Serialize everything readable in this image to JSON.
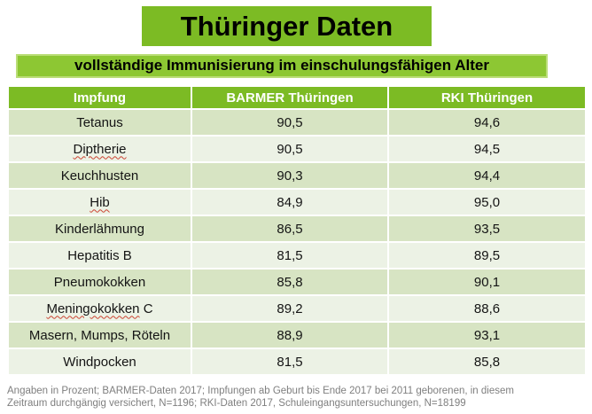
{
  "title": "Thüringer Daten",
  "subtitle": "vollständige Immunisierung im einschulungsfähigen Alter",
  "colors": {
    "brand_green": "#7cbb24",
    "subtitle_fill": "#8dc733",
    "subtitle_border": "#badd77",
    "row_band_dark": "#d7e4c3",
    "row_band_light": "#ecf2e5",
    "header_text": "#ffffff",
    "footnote_gray": "#7f7f7f",
    "spellcheck_red": "#cc4433"
  },
  "table": {
    "columns": [
      "Impfung",
      "BARMER Thüringen",
      "RKI Thüringen"
    ],
    "rows": [
      {
        "impfung": "Tetanus",
        "barmer": "90,5",
        "rki": "94,6"
      },
      {
        "impfung": "Diptherie",
        "barmer": "90,5",
        "rki": "94,5",
        "spellcheck": "Diptherie"
      },
      {
        "impfung": "Keuchhusten",
        "barmer": "90,3",
        "rki": "94,4"
      },
      {
        "impfung": "Hib",
        "barmer": "84,9",
        "rki": "95,0",
        "spellcheck": "Hib"
      },
      {
        "impfung": "Kinderlähmung",
        "barmer": "86,5",
        "rki": "93,5"
      },
      {
        "impfung": "Hepatitis B",
        "barmer": "81,5",
        "rki": "89,5"
      },
      {
        "impfung": "Pneumokokken",
        "barmer": "85,8",
        "rki": "90,1"
      },
      {
        "impfung": "Meningokokken C",
        "barmer": "89,2",
        "rki": "88,6",
        "spellcheck": "Meningokokken"
      },
      {
        "impfung": "Masern, Mumps, Röteln",
        "barmer": "88,9",
        "rki": "93,1"
      },
      {
        "impfung": "Windpocken",
        "barmer": "81,5",
        "rki": "85,8"
      }
    ]
  },
  "footnote": {
    "lines": [
      "Angaben in Prozent; BARMER-Daten 2017; Impfungen ab Geburt bis Ende 2017 bei 2011 geborenen, in diesem",
      "Zeitraum durchgängig versichert, N=1196; RKI-Daten 2017, Schuleingangsuntersuchungen, N=18199"
    ]
  },
  "chart_data": {
    "type": "table",
    "title": "Thüringer Daten",
    "subtitle": "vollständige Immunisierung im einschulungsfähigen Alter",
    "unit": "percent",
    "categories": [
      "Tetanus",
      "Diptherie",
      "Keuchhusten",
      "Hib",
      "Kinderlähmung",
      "Hepatitis B",
      "Pneumokokken",
      "Meningokokken C",
      "Masern, Mumps, Röteln",
      "Windpocken"
    ],
    "series": [
      {
        "name": "BARMER Thüringen",
        "values": [
          90.5,
          90.5,
          90.3,
          84.9,
          86.5,
          81.5,
          85.8,
          89.2,
          88.9,
          81.5
        ]
      },
      {
        "name": "RKI Thüringen",
        "values": [
          94.6,
          94.5,
          94.4,
          95.0,
          93.5,
          89.5,
          90.1,
          88.6,
          93.1,
          85.8
        ]
      }
    ],
    "footnote": "Angaben in Prozent; BARMER-Daten 2017; Impfungen ab Geburt bis Ende 2017 bei 2011 geborenen, in diesem Zeitraum durchgängig versichert, N=1196; RKI-Daten 2017, Schuleingangsuntersuchungen, N=18199"
  }
}
